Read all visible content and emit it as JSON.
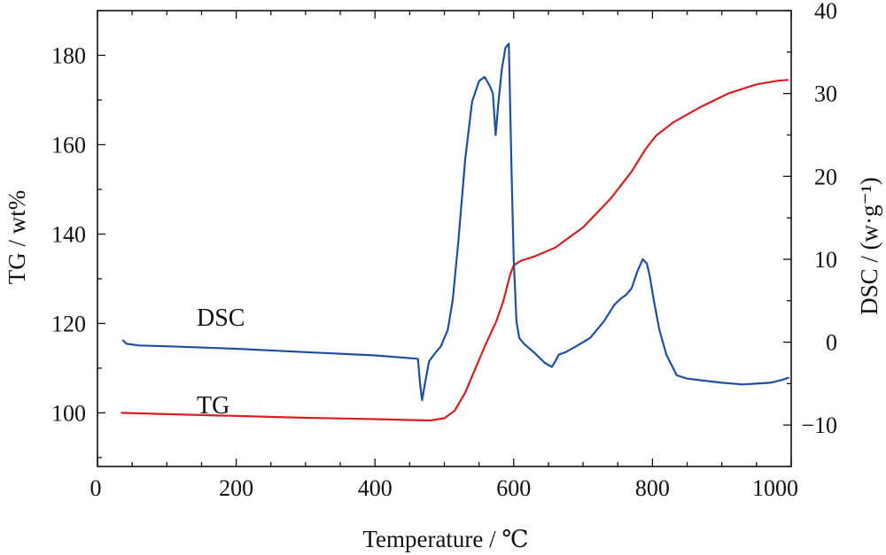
{
  "chart_data": {
    "type": "line",
    "xlabel": "Temperature / ℃",
    "ylabel_left": "TG / wt%",
    "ylabel_right": "DSC / (w·g⁻¹)",
    "xlim": [
      0,
      1000
    ],
    "ylim_left": [
      88,
      190
    ],
    "ylim_right": [
      -15,
      40
    ],
    "xticks": [
      0,
      200,
      400,
      600,
      800,
      1000
    ],
    "yticks_left": [
      100,
      120,
      140,
      160,
      180
    ],
    "yticks_right": [
      -10,
      0,
      10,
      20,
      30,
      40
    ],
    "yticks_right_labels": [
      "−10",
      "0",
      "10",
      "20",
      "30",
      "40"
    ],
    "grid": false,
    "annotations": [
      {
        "text": "DSC",
        "series": "DSC"
      },
      {
        "text": "TG",
        "series": "TG"
      }
    ],
    "series": [
      {
        "name": "TG",
        "axis": "left",
        "color": "#d42020",
        "x": [
          35,
          100,
          200,
          300,
          400,
          450,
          480,
          500,
          515,
          530,
          545,
          560,
          575,
          585,
          595,
          600,
          610,
          630,
          660,
          700,
          740,
          770,
          790,
          805,
          830,
          870,
          910,
          950,
          980,
          995
        ],
        "y": [
          100,
          99.7,
          99.3,
          98.9,
          98.6,
          98.4,
          98.3,
          98.8,
          100.5,
          104.5,
          110,
          115.5,
          120.5,
          125,
          131,
          133,
          134,
          135,
          137,
          141.5,
          148,
          154,
          159,
          162,
          165,
          168.5,
          171.5,
          173.5,
          174.3,
          174.5
        ]
      },
      {
        "name": "DSC",
        "axis": "right",
        "color": "#1f4fa0",
        "x": [
          37,
          42,
          60,
          100,
          200,
          300,
          400,
          462,
          465,
          468,
          472,
          478,
          485,
          495,
          505,
          512,
          520,
          530,
          540,
          550,
          558,
          565,
          570,
          574,
          578,
          583,
          588,
          593,
          597,
          600,
          604,
          608,
          615,
          630,
          645,
          655,
          660,
          665,
          675,
          690,
          710,
          730,
          745,
          755,
          762,
          770,
          778,
          786,
          792,
          796,
          802,
          810,
          820,
          835,
          850,
          870,
          900,
          930,
          950,
          970,
          985,
          996
        ],
        "y": [
          0.2,
          -0.2,
          -0.4,
          -0.5,
          -0.8,
          -1.2,
          -1.6,
          -2.0,
          -5.0,
          -7.0,
          -5.0,
          -2.3,
          -1.5,
          -0.5,
          1.5,
          5.0,
          12.0,
          22.0,
          29.0,
          31.5,
          32.0,
          31.0,
          30.0,
          25.0,
          29.0,
          33.0,
          35.5,
          36.0,
          20.0,
          10.0,
          2.5,
          0.5,
          -0.2,
          -1.3,
          -2.5,
          -3.0,
          -2.3,
          -1.5,
          -1.2,
          -0.5,
          0.5,
          2.5,
          4.5,
          5.3,
          5.7,
          6.5,
          8.5,
          10.0,
          9.5,
          8.0,
          5.0,
          1.5,
          -1.5,
          -4.0,
          -4.4,
          -4.6,
          -4.9,
          -5.1,
          -5.0,
          -4.9,
          -4.6,
          -4.3
        ]
      }
    ]
  }
}
